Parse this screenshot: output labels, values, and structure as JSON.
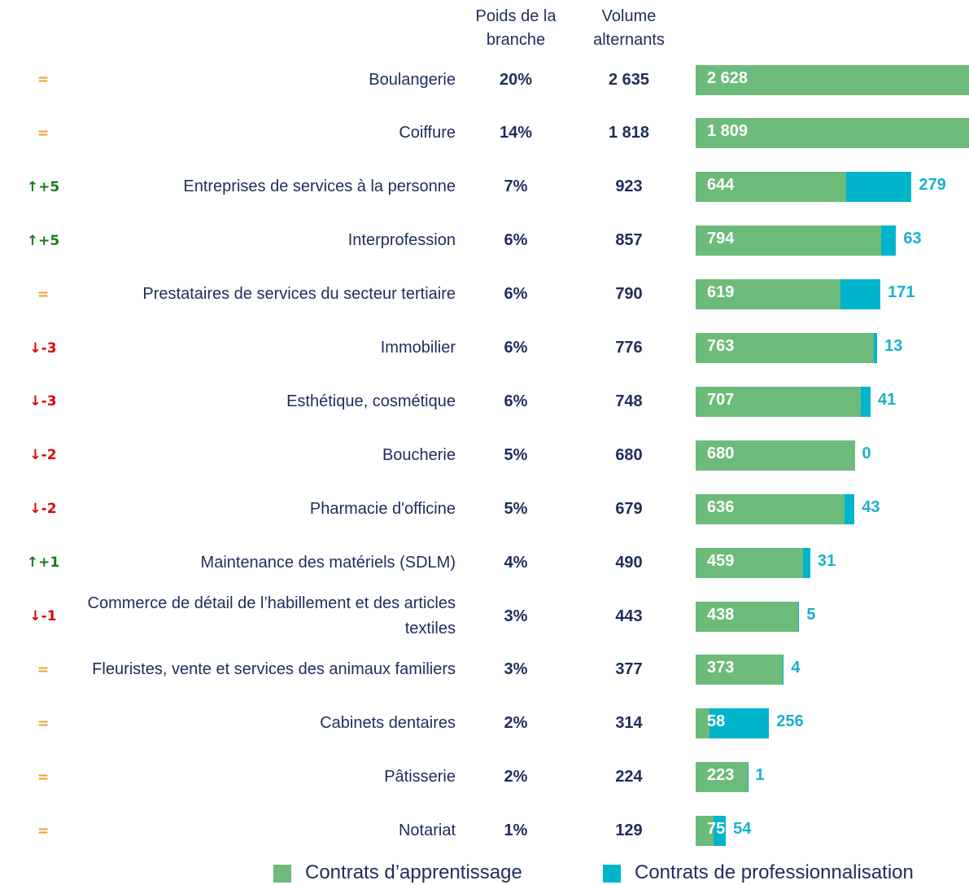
{
  "chart_data": {
    "type": "bar",
    "column_headers": {
      "weight": "Poids de la branche",
      "volume": "Volume alternants"
    },
    "categories": [
      "Boulangerie",
      "Coiffure",
      "Entreprises de services à la personne",
      "Interprofession",
      "Prestataires de services du secteur tertiaire",
      "Immobilier",
      "Esthétique, cosmétique",
      "Boucherie",
      "Pharmacie d'officine",
      "Maintenance des matériels (SDLM)",
      "Commerce de détail de l’habillement et des articles textiles",
      "Fleuristes, vente et services des animaux familiers",
      "Cabinets dentaires",
      "Pâtisserie",
      "Notariat"
    ],
    "rank_change": [
      "=",
      "=",
      "↑+5",
      "↑+5",
      "=",
      "↓-3",
      "↓-3",
      "↓-2",
      "↓-2",
      "↑+1",
      "↓-1",
      "=",
      "=",
      "=",
      "="
    ],
    "weight": [
      "20%",
      "14%",
      "7%",
      "6%",
      "6%",
      "6%",
      "6%",
      "5%",
      "5%",
      "4%",
      "3%",
      "3%",
      "2%",
      "2%",
      "1%"
    ],
    "volume": [
      "2 635",
      "1 818",
      "923",
      "857",
      "790",
      "776",
      "748",
      "680",
      "679",
      "490",
      "443",
      "377",
      "314",
      "224",
      "129"
    ],
    "series": [
      {
        "name": "Contrats d’apprentissage",
        "color": "#6dbb7a",
        "values": [
          2628,
          1809,
          644,
          794,
          619,
          763,
          707,
          680,
          636,
          459,
          438,
          373,
          58,
          223,
          75
        ],
        "value_labels": [
          "2 628",
          "1 809",
          "644",
          "794",
          "619",
          "763",
          "707",
          "680",
          "636",
          "459",
          "438",
          "373",
          "58",
          "223",
          "75"
        ]
      },
      {
        "name": "Contrats de professionnalisation",
        "color": "#00b4cc",
        "values": [
          null,
          null,
          279,
          63,
          171,
          13,
          41,
          0,
          43,
          31,
          5,
          4,
          256,
          1,
          54
        ]
      }
    ]
  }
}
